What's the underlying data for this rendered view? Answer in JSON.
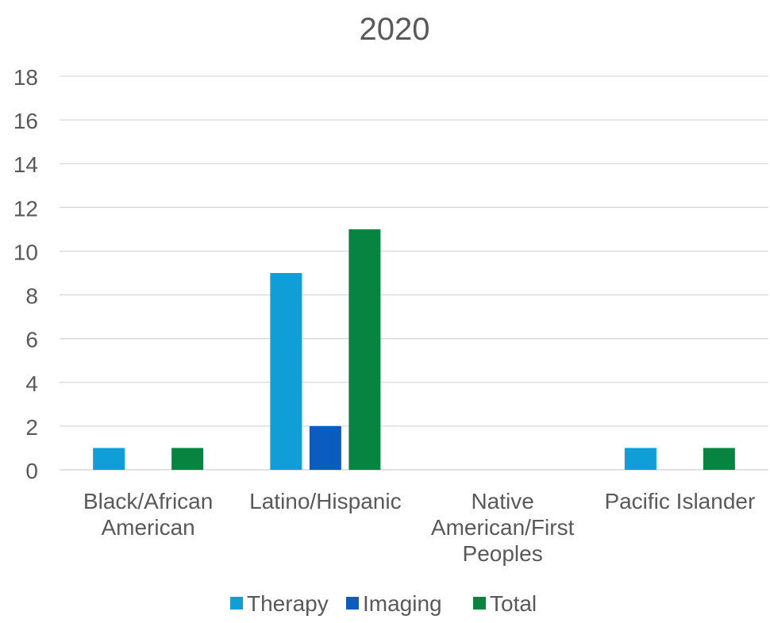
{
  "chart_data": {
    "type": "bar",
    "title": "2020",
    "categories": [
      [
        "Black/African",
        "American"
      ],
      [
        "Latino/Hispanic"
      ],
      [
        "Native",
        "American/First",
        "Peoples"
      ],
      [
        "Pacific Islander"
      ]
    ],
    "series": [
      {
        "name": "Therapy",
        "color": "#0f9ed5",
        "values": [
          1,
          9,
          0,
          1
        ]
      },
      {
        "name": "Imaging",
        "color": "#0b5cbf",
        "values": [
          0,
          2,
          0,
          0
        ]
      },
      {
        "name": "Total",
        "color": "#078540",
        "values": [
          1,
          11,
          0,
          1
        ]
      }
    ],
    "ylim": [
      0,
      18
    ],
    "yticks": [
      0,
      2,
      4,
      6,
      8,
      10,
      12,
      14,
      16,
      18
    ],
    "grid": true,
    "legend": "bottom"
  }
}
